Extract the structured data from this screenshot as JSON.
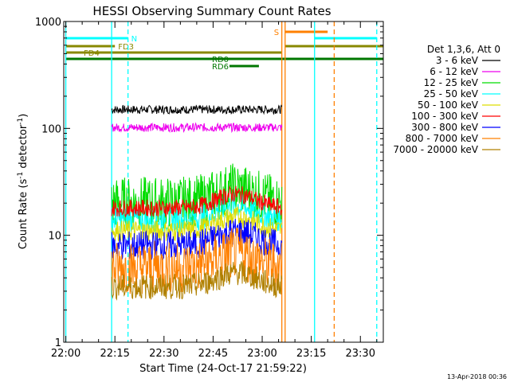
{
  "chart_data": {
    "type": "line",
    "title": "HESSI Observing Summary Count Rates",
    "xlabel": "Start Time (24-Oct-17 21:59:22)",
    "ylabel": "Count Rate (s",
    "ylabel_sup": "-1",
    "ylabel_tail": " detector",
    "ylabel_sup2": "-1",
    "ylabel_end": ")",
    "y_scale": "log",
    "ylim": [
      1,
      1000
    ],
    "xlim": [
      "22:00",
      "23:37"
    ],
    "x_ticks": [
      "22:00",
      "22:15",
      "22:30",
      "22:45",
      "23:00",
      "23:15",
      "23:30"
    ],
    "y_ticks": [
      "1",
      "10",
      "100",
      "1000"
    ],
    "legend_header": "Det 1,3,6, Att 0",
    "legend_placement": "right",
    "series": [
      {
        "name": "3 - 6 keV",
        "color": "#000000",
        "level": 150,
        "noise": 0.04
      },
      {
        "name": "6 - 12 keV",
        "color": "#ee00ee",
        "level": 102,
        "noise": 0.04
      },
      {
        "name": "12 - 25 keV",
        "color": "#00dd00",
        "level": 20,
        "noise": 0.25
      },
      {
        "name": "25 - 50 keV",
        "color": "#00ffff",
        "level": 14,
        "noise": 0.12
      },
      {
        "name": "50 - 100 keV",
        "color": "#dddd00",
        "level": 11,
        "noise": 0.1
      },
      {
        "name": "100 - 300 keV",
        "color": "#ff0000",
        "level": 18,
        "noise": 0.08
      },
      {
        "name": "300 - 800 keV",
        "color": "#0000ff",
        "level": 8,
        "noise": 0.14
      },
      {
        "name": "800 - 7000 keV",
        "color": "#ff8000",
        "level": 5,
        "noise": 0.25
      },
      {
        "name": "7000 - 20000 keV",
        "color": "#b08000",
        "level": 3.3,
        "noise": 0.12
      }
    ],
    "flags": [
      {
        "label": "N",
        "color": "#00ffff",
        "start": "22:00",
        "end": "22:19"
      },
      {
        "label": "FD3",
        "color": "#888800",
        "start": "22:00",
        "end": "22:15"
      },
      {
        "label": "FD4",
        "color": "#888800",
        "start": "22:00",
        "end": "23:06"
      },
      {
        "label": "RD0",
        "color": "#007700",
        "start": "22:00",
        "end": "23:37"
      },
      {
        "label": "RD6",
        "color": "#007700",
        "start": "22:50",
        "end": "22:59"
      },
      {
        "label": "S",
        "color": "#ff8000",
        "start": "23:07",
        "end": "23:20"
      }
    ],
    "vlines": [
      {
        "time": "22:00",
        "color": "#00ffff",
        "style": "solid"
      },
      {
        "time": "22:14",
        "color": "#00ffff",
        "style": "solid"
      },
      {
        "time": "22:19",
        "color": "#00ffff",
        "style": "dashed"
      },
      {
        "time": "23:06",
        "color": "#ff8000",
        "style": "solid"
      },
      {
        "time": "23:07",
        "color": "#ff8000",
        "style": "solid"
      },
      {
        "time": "23:16",
        "color": "#00ffff",
        "style": "solid"
      },
      {
        "time": "23:22",
        "color": "#ff8000",
        "style": "dashed"
      },
      {
        "time": "23:35",
        "color": "#00ffff",
        "style": "dashed"
      }
    ],
    "data_window": [
      "22:14",
      "23:06"
    ]
  },
  "footer": {
    "timestamp": "13-Apr-2018 00:36"
  }
}
